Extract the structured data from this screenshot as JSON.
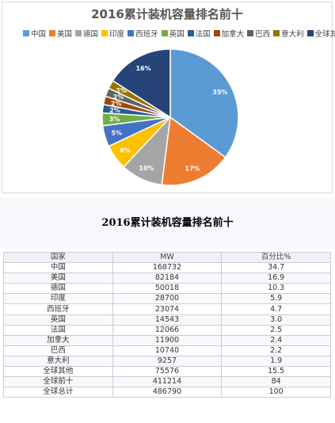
{
  "chart_data": {
    "type": "pie",
    "title": "2016累计装机容量排名前十",
    "legend_position": "top",
    "categories": [
      "中国",
      "美国",
      "德国",
      "印度",
      "西班牙",
      "英国",
      "法国",
      "加拿大",
      "巴西",
      "意大利",
      "全球其他"
    ],
    "values": [
      35,
      17,
      10,
      6,
      5,
      3,
      2,
      2,
      2,
      2,
      16
    ],
    "data_labels": [
      "35%",
      "17%",
      "10%",
      "6%",
      "5%",
      "3%",
      "2%",
      "2%",
      "2%",
      "2%",
      "16%"
    ],
    "colors": [
      "#5b9bd5",
      "#ed7d31",
      "#a5a5a5",
      "#ffc000",
      "#4472c4",
      "#70ad47",
      "#255e91",
      "#9e480e",
      "#636363",
      "#997300",
      "#264478"
    ]
  },
  "table": {
    "title": "2016累计装机容量排名前十",
    "headers": [
      "国家",
      "MW",
      "百分比%"
    ],
    "rows": [
      [
        "中国",
        "168732",
        "34.7"
      ],
      [
        "美国",
        "82184",
        "16.9"
      ],
      [
        "德国",
        "50018",
        "10.3"
      ],
      [
        "印度",
        "28700",
        "5.9"
      ],
      [
        "西班牙",
        "23074",
        "4.7"
      ],
      [
        "英国",
        "14543",
        "3.0"
      ],
      [
        "法国",
        "12066",
        "2.5"
      ],
      [
        "加拿大",
        "11900",
        "2.4"
      ],
      [
        "巴西",
        "10740",
        "2.2"
      ],
      [
        "意大利",
        "9257",
        "1.9"
      ],
      [
        "全球其他",
        "75576",
        "15.5"
      ],
      [
        "全球前十",
        "411214",
        "84"
      ],
      [
        "全球总计",
        "486790",
        "100"
      ]
    ]
  }
}
